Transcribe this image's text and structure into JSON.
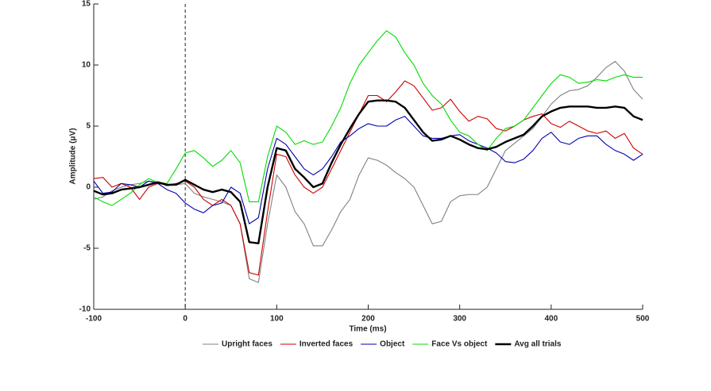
{
  "chart_data": {
    "type": "line",
    "xlabel": "Time (ms)",
    "ylabel": "Amplitude (μV)",
    "x": [
      -100,
      -90,
      -80,
      -70,
      -60,
      -50,
      -40,
      -30,
      -20,
      -10,
      0,
      10,
      20,
      30,
      40,
      50,
      60,
      70,
      80,
      90,
      100,
      110,
      120,
      130,
      140,
      150,
      160,
      170,
      180,
      190,
      200,
      210,
      220,
      230,
      240,
      250,
      260,
      270,
      280,
      290,
      300,
      310,
      320,
      330,
      340,
      350,
      360,
      370,
      380,
      390,
      400,
      410,
      420,
      430,
      440,
      450,
      460,
      470,
      480,
      490,
      500
    ],
    "series": [
      {
        "name": "Upright faces",
        "color": "#808080",
        "values": [
          -1,
          -0.8,
          -0.3,
          0,
          0.2,
          0.3,
          0.5,
          0.4,
          0.1,
          0.2,
          0.3,
          -0.5,
          -0.8,
          -1,
          -1.2,
          -1.5,
          -3,
          -7.5,
          -7.8,
          -3,
          1,
          0,
          -2,
          -3,
          -4.8,
          -4.8,
          -3.5,
          -2,
          -1,
          1,
          2.4,
          2.2,
          1.8,
          1.2,
          0.7,
          0,
          -1.5,
          -3,
          -2.8,
          -1.2,
          -0.7,
          -0.6,
          -0.6,
          0,
          1.5,
          3,
          3.6,
          4.2,
          4.8,
          5.8,
          6.8,
          7.5,
          7.9,
          8,
          8.3,
          9,
          9.8,
          10.3,
          9.5,
          8,
          7.2
        ]
      },
      {
        "name": "Inverted faces",
        "color": "#cc0000",
        "values": [
          0.7,
          0.8,
          0,
          0.3,
          0,
          -1,
          0,
          0.3,
          0.2,
          0.3,
          0.5,
          0,
          -1,
          -1.5,
          -1,
          -1.5,
          -3,
          -7,
          -7.2,
          -2,
          2.7,
          2.5,
          1,
          0,
          -0.5,
          0,
          1.5,
          3,
          4.5,
          6,
          7.5,
          7.5,
          7,
          7.8,
          8.7,
          8.3,
          7.3,
          6.3,
          6.5,
          7.2,
          6.2,
          5.4,
          5.8,
          5.6,
          4.8,
          4.6,
          5,
          5.5,
          5.8,
          6,
          5.2,
          4.9,
          5.4,
          5,
          4.6,
          4.4,
          4.6,
          4,
          4.4,
          3.2,
          2.7
        ]
      },
      {
        "name": "Object",
        "color": "#0000b0",
        "values": [
          0.5,
          -0.5,
          -0.4,
          0.3,
          0.2,
          0,
          0.5,
          0.3,
          -0.2,
          -0.5,
          -1.3,
          -1.8,
          -2.1,
          -1.5,
          -1.3,
          0,
          -0.5,
          -3,
          -2.5,
          1.5,
          4,
          3.5,
          2.5,
          1.5,
          1,
          1.5,
          2.5,
          3.7,
          4.2,
          4.8,
          5.2,
          5,
          5,
          5.5,
          5.8,
          5,
          4.2,
          4,
          4,
          4.2,
          4.3,
          3.8,
          3.5,
          3.2,
          2.8,
          2.1,
          2,
          2.3,
          3,
          4,
          4.5,
          3.7,
          3.5,
          4,
          4.2,
          4.2,
          3.5,
          3,
          2.7,
          2.2,
          2.7
        ]
      },
      {
        "name": "Face Vs object",
        "color": "#00dd00",
        "values": [
          -0.8,
          -1.2,
          -1.5,
          -1,
          -0.5,
          0.2,
          0.7,
          0.4,
          0.3,
          1.5,
          2.8,
          3,
          2.4,
          1.7,
          2.2,
          3,
          2,
          -1.2,
          -1.2,
          2.5,
          5,
          4.5,
          3.5,
          3.8,
          3.5,
          3.7,
          5,
          6.5,
          8.5,
          10,
          11,
          12,
          12.8,
          12.3,
          11,
          10,
          8.5,
          7.5,
          6.8,
          5.5,
          4.5,
          4.2,
          3.5,
          3,
          4,
          4.8,
          5,
          5.5,
          6.5,
          7.5,
          8.5,
          9.2,
          9,
          8.5,
          8.6,
          8.8,
          8.7,
          9,
          9.2,
          9,
          9
        ]
      },
      {
        "name": "Avg all trials",
        "color": "#000000",
        "values": [
          -0.3,
          -0.6,
          -0.5,
          -0.2,
          -0.1,
          0,
          0.2,
          0.4,
          0.2,
          0.2,
          0.6,
          0.2,
          -0.2,
          -0.4,
          -0.2,
          -0.4,
          -1.2,
          -4.5,
          -4.6,
          0,
          3.2,
          3,
          1.5,
          0.8,
          0,
          0.3,
          2,
          3.5,
          4.8,
          6,
          7,
          7.1,
          7.1,
          7,
          6.5,
          5.5,
          4.5,
          3.8,
          3.9,
          4.2,
          3.9,
          3.5,
          3.2,
          3.1,
          3.3,
          3.7,
          4,
          4.3,
          5,
          5.8,
          6.2,
          6.5,
          6.6,
          6.6,
          6.6,
          6.5,
          6.5,
          6.6,
          6.5,
          5.8,
          5.5
        ]
      }
    ],
    "xlim": [
      -100,
      500
    ],
    "xticks": [
      -100,
      0,
      100,
      200,
      300,
      400,
      500
    ],
    "ylim": [
      -10,
      15
    ],
    "yticks": [
      -10,
      -5,
      0,
      5,
      10,
      15
    ],
    "vline": 0,
    "legend": "bottom"
  }
}
